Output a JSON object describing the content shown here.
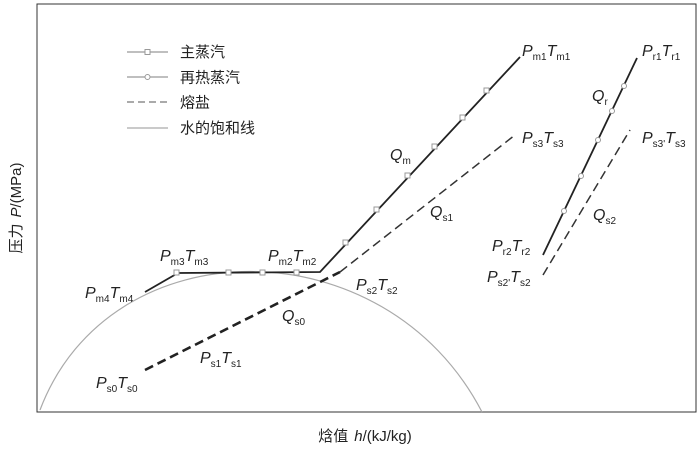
{
  "axes": {
    "y_label": [
      "压力",
      "P",
      "/(MPa)"
    ],
    "x_label": [
      "焓值",
      "h",
      "/(kJ/kg)"
    ]
  },
  "legend": [
    "主蒸汽",
    "再热蒸汽",
    "熔盐",
    "水的饱和线"
  ],
  "labels": [
    [
      "P",
      "m1",
      "T",
      "m1"
    ],
    [
      "P",
      "r1",
      "T",
      "r1"
    ],
    [
      "Q",
      "r"
    ],
    [
      "Q",
      "m"
    ],
    [
      "P",
      "s3",
      "T",
      "s3"
    ],
    [
      "P",
      "s3'",
      "T",
      "s3"
    ],
    [
      "Q",
      "s1"
    ],
    [
      "Q",
      "s2"
    ],
    [
      "P",
      "r2",
      "T",
      "r2"
    ],
    [
      "P",
      "s2'",
      "T",
      "s2"
    ],
    [
      "P",
      "m3",
      "T",
      "m3"
    ],
    [
      "P",
      "m2",
      "T",
      "m2"
    ],
    [
      "P",
      "s2",
      "T",
      "s2"
    ],
    [
      "P",
      "m4",
      "T",
      "m4"
    ],
    [
      "Q",
      "s0"
    ],
    [
      "P",
      "s1",
      "T",
      "s1"
    ],
    [
      "P",
      "s0",
      "T",
      "s0"
    ]
  ]
}
